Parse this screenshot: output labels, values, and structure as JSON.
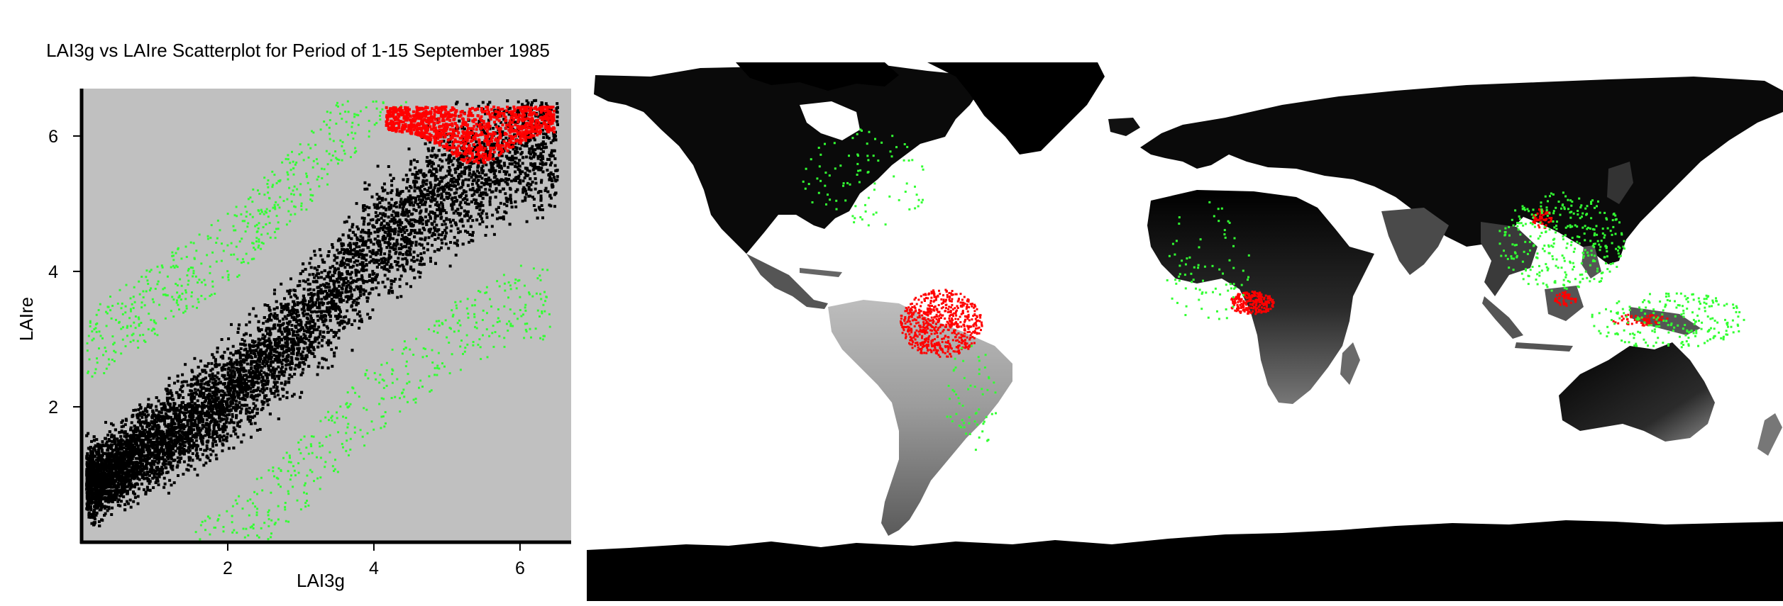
{
  "figure": {
    "title": "LAI3g vs LAIre Scatterplot for Period of 1-15 September 1985"
  },
  "chart_data": [
    {
      "type": "scatter",
      "title": "LAI3g vs LAIre Scatterplot for Period of 1-15 September 1985",
      "xlabel": "LAI3g",
      "ylabel": "LAIre",
      "xlim": [
        0,
        6.7
      ],
      "ylim": [
        0,
        6.7
      ],
      "x_ticks": [
        2,
        4,
        6
      ],
      "y_ticks": [
        2,
        4,
        6
      ],
      "grid": false,
      "background_color": "#c0c0c0",
      "series": [
        {
          "color": "#000000",
          "region": "dense diagonal band from (0.1, 0.1) to (6.5, 6.3)",
          "band_center_y_at_x": [
            [
              0.2,
              0.9
            ],
            [
              1,
              1.5
            ],
            [
              2,
              2.2
            ],
            [
              3,
              3.2
            ],
            [
              4,
              4.4
            ],
            [
              5,
              5.3
            ],
            [
              6,
              5.9
            ]
          ]
        },
        {
          "color": "#33ff33",
          "region": "sparse points on both edges of the band"
        },
        {
          "color": "#ff0000",
          "region": "cluster x 4.1-6.5, y 5.6-6.5"
        }
      ]
    },
    {
      "type": "map",
      "projection": "equirectangular",
      "base_colors": {
        "ocean": "#ffffff",
        "land_low": "#000000",
        "land_high": "#ffffff"
      },
      "highlight_colors": {
        "red": "#ff0000",
        "green": "#33ff33"
      },
      "red_regions": [
        "Amazon basin",
        "Congo basin",
        "Southeast Asia",
        "Indonesia"
      ],
      "green_regions": [
        "coastlines",
        "Southeast Asia",
        "Indonesia"
      ]
    }
  ],
  "colors": {
    "plot_bg": "#c0c0c0",
    "black": "#000000",
    "green": "#33ff33",
    "red": "#ff0000"
  }
}
